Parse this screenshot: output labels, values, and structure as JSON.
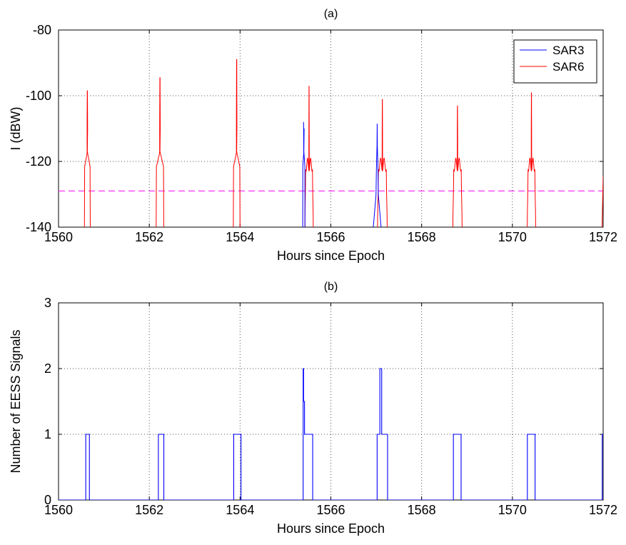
{
  "chart_data": [
    {
      "type": "line",
      "title": "(a)",
      "xlabel": "Hours since Epoch",
      "ylabel": "I (dBW)",
      "xlim": [
        1560,
        1572
      ],
      "ylim": [
        -140,
        -80
      ],
      "x_ticks": [
        1560,
        1562,
        1564,
        1566,
        1568,
        1570,
        1572
      ],
      "y_ticks": [
        -140,
        -120,
        -100,
        -80
      ],
      "grid": true,
      "legend_position": "top-right",
      "threshold": {
        "y": -129,
        "color": "#ff33ff",
        "style": "dashed"
      },
      "series": [
        {
          "name": "SAR3",
          "color": "#0000ff",
          "passes": [
            {
              "start": 1565.38,
              "end": 1565.43,
              "peak": -111.5,
              "shape": "spike"
            },
            {
              "start": 1566.9,
              "end": 1567.12,
              "peak": -108.5,
              "shape": "hump"
            }
          ]
        },
        {
          "name": "SAR6",
          "color": "#ff0000",
          "passes": [
            {
              "start": 1560.57,
              "end": 1560.7,
              "peak": -98.5,
              "shape": "spike"
            },
            {
              "start": 1562.15,
              "end": 1562.32,
              "peak": -94.5,
              "shape": "spike"
            },
            {
              "start": 1563.85,
              "end": 1564.0,
              "peak": -89,
              "shape": "spike"
            },
            {
              "start": 1565.42,
              "end": 1565.62,
              "peak": -97,
              "shape": "notched"
            },
            {
              "start": 1567.02,
              "end": 1567.25,
              "peak": -101,
              "shape": "notched"
            },
            {
              "start": 1568.68,
              "end": 1568.9,
              "peak": -103,
              "shape": "notched"
            },
            {
              "start": 1570.32,
              "end": 1570.52,
              "peak": -99,
              "shape": "notched"
            },
            {
              "start": 1571.97,
              "end": 1572.0,
              "peak": -124.5,
              "shape": "edge"
            }
          ]
        }
      ]
    },
    {
      "type": "line",
      "title": "(b)",
      "xlabel": "Hours since Epoch",
      "ylabel": "Number of EESS Signals",
      "xlim": [
        1560,
        1572
      ],
      "ylim": [
        0,
        3
      ],
      "x_ticks": [
        1560,
        1562,
        1564,
        1566,
        1568,
        1570,
        1572
      ],
      "y_ticks": [
        0,
        1,
        2,
        3
      ],
      "grid": true,
      "series": [
        {
          "color": "#0000ff",
          "x": [
            1560,
            1560.6,
            1560.6,
            1560.68,
            1560.68,
            1562.2,
            1562.2,
            1562.32,
            1562.32,
            1563.86,
            1563.86,
            1564.02,
            1564.02,
            1565.39,
            1565.39,
            1565.4,
            1565.4,
            1565.42,
            1565.42,
            1565.6,
            1565.6,
            1567.02,
            1567.02,
            1567.08,
            1567.08,
            1567.12,
            1567.12,
            1567.25,
            1567.25,
            1568.7,
            1568.7,
            1568.87,
            1568.87,
            1570.33,
            1570.33,
            1570.5,
            1570.5,
            1571.98,
            1571.98,
            1572
          ],
          "y": [
            0,
            0,
            1,
            1,
            0,
            0,
            1,
            1,
            0,
            0,
            1,
            1,
            0,
            0,
            2,
            2,
            1.5,
            1.5,
            1,
            1,
            0,
            0,
            1,
            1,
            2,
            2,
            1,
            1,
            0,
            0,
            1,
            1,
            0,
            0,
            1,
            1,
            0,
            0,
            1,
            1
          ]
        }
      ]
    }
  ]
}
